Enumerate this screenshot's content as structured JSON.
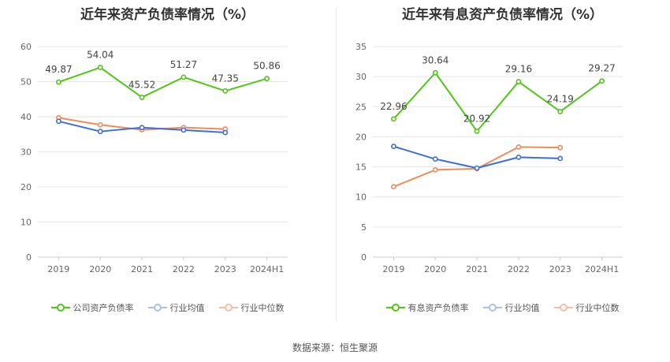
{
  "source_text": "数据来源：恒生聚源",
  "chart_data": [
    {
      "type": "line",
      "title": "近年来资产负债率情况（%）",
      "categories": [
        "2019",
        "2020",
        "2021",
        "2022",
        "2023",
        "2024H1"
      ],
      "ylim": [
        0,
        60
      ],
      "yticks": [
        0,
        10,
        20,
        30,
        40,
        50,
        60
      ],
      "grid": true,
      "legend_position": "bottom",
      "series": [
        {
          "name": "公司资产负债率",
          "color": "#52c41a",
          "values": [
            49.87,
            54.04,
            45.52,
            51.27,
            47.35,
            50.86
          ],
          "labels": [
            "49.87",
            "54.04",
            "45.52",
            "51.27",
            "47.35",
            "50.86"
          ]
        },
        {
          "name": "行业均值",
          "color": "#3d6fd9",
          "values": [
            38.7,
            35.8,
            36.9,
            36.2,
            35.5,
            null
          ]
        },
        {
          "name": "行业中位数",
          "color": "#f08c5a",
          "values": [
            39.7,
            37.7,
            36.3,
            36.9,
            36.5,
            null
          ]
        }
      ]
    },
    {
      "type": "line",
      "title": "近年来有息资产负债率情况（%）",
      "categories": [
        "2019",
        "2020",
        "2021",
        "2022",
        "2023",
        "2024H1"
      ],
      "ylim": [
        0,
        35
      ],
      "yticks": [
        0,
        5,
        10,
        15,
        20,
        25,
        30,
        35
      ],
      "grid": true,
      "legend_position": "bottom",
      "series": [
        {
          "name": "有息资产负债率",
          "color": "#52c41a",
          "values": [
            22.96,
            30.64,
            20.92,
            29.16,
            24.19,
            29.27
          ],
          "labels": [
            "22.96",
            "30.64",
            "20.92",
            "29.16",
            "24.19",
            "29.27"
          ]
        },
        {
          "name": "行业均值",
          "color": "#3d6fd9",
          "values": [
            18.4,
            16.3,
            14.8,
            16.6,
            16.4,
            null
          ]
        },
        {
          "name": "行业中位数",
          "color": "#f08c5a",
          "values": [
            11.7,
            14.5,
            14.7,
            18.3,
            18.2,
            null
          ]
        }
      ]
    }
  ]
}
